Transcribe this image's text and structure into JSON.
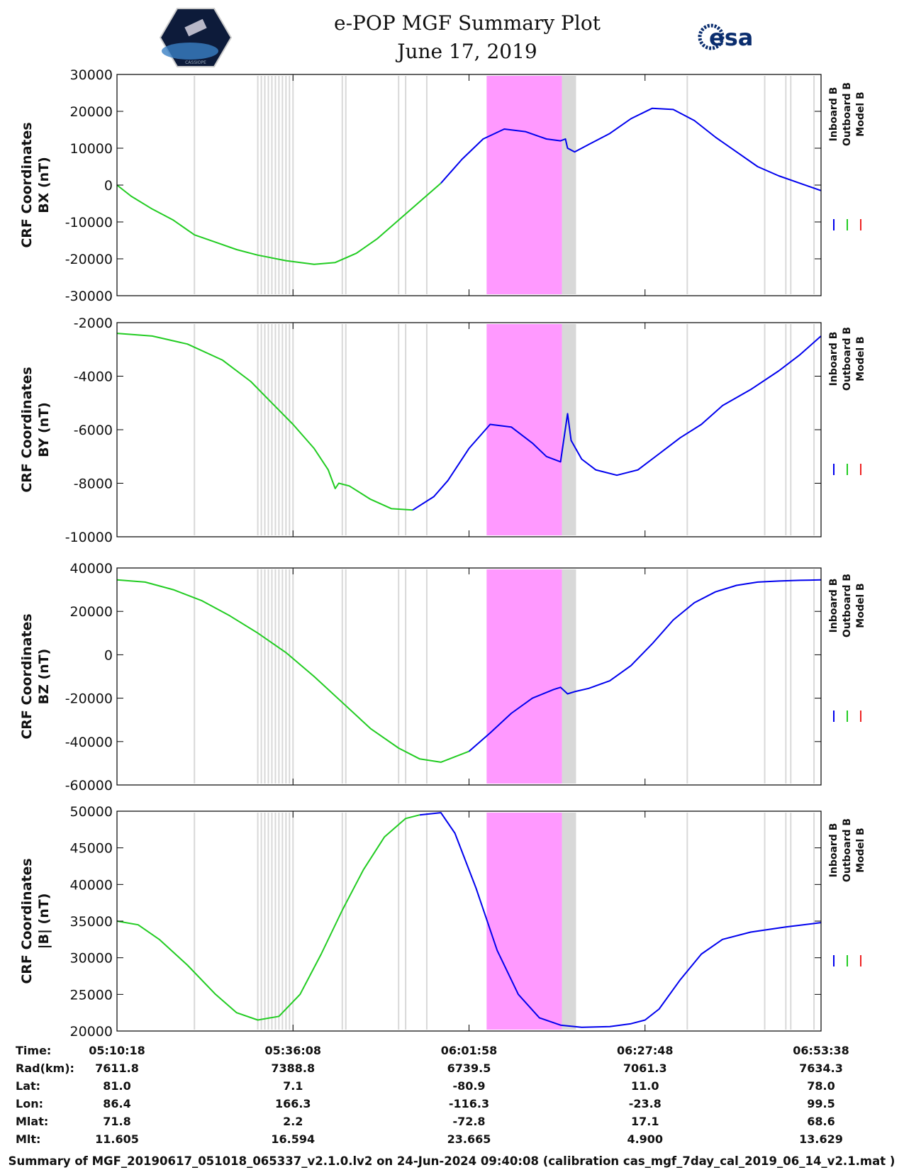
{
  "header": {
    "title": "e-POP MGF Summary Plot",
    "date": "June 17, 2019",
    "esa_logo_text": "esa",
    "cassiope_logo_text": "CASSIOPE"
  },
  "footer": {
    "summary": "Summary of MGF_20190617_051018_065337_v2.1.0.lv2 on 24-Jun-2024 09:40:08 (calibration cas_mgf_7day_cal_2019_06_14_v2.1.mat )"
  },
  "colors": {
    "inboard": "#0000ee",
    "outboard": "#22cc22",
    "model": "#ee2222",
    "gap": "#d8d8d8",
    "highlight": "#ff99ff"
  },
  "chart_data": [
    {
      "type": "line",
      "ylabel_line1": "CRF Coordinates",
      "ylabel_line2": "BX (nT)",
      "ylim": [
        -30000,
        30000
      ],
      "yticks": [
        -30000,
        -20000,
        -10000,
        0,
        10000,
        20000,
        30000
      ],
      "ytick_labels": [
        "-30000",
        "-20000",
        "-10000",
        "0",
        "10000",
        "20000",
        "30000"
      ],
      "legend": [
        "Inboard B",
        "Outboard B",
        "Model B"
      ],
      "series": [
        {
          "name": "Outboard B",
          "x": [
            0,
            0.02,
            0.05,
            0.08,
            0.11,
            0.14,
            0.17,
            0.2,
            0.24,
            0.28,
            0.31,
            0.34,
            0.37,
            0.4,
            0.43,
            0.46
          ],
          "values": [
            0,
            -3000,
            -6500,
            -9500,
            -13500,
            -15500,
            -17500,
            -19000,
            -20500,
            -21500,
            -21000,
            -18500,
            -14500,
            -9500,
            -4500,
            500
          ]
        },
        {
          "name": "Inboard B",
          "x": [
            0.46,
            0.49,
            0.52,
            0.55,
            0.58,
            0.61,
            0.63,
            0.637,
            0.64,
            0.65,
            0.67,
            0.7,
            0.73,
            0.76,
            0.79,
            0.82,
            0.85,
            0.88,
            0.91,
            0.94,
            0.97,
            1.0
          ],
          "values": [
            500,
            7000,
            12500,
            15200,
            14500,
            12500,
            12000,
            12500,
            10000,
            9000,
            11000,
            14000,
            18000,
            20800,
            20500,
            17500,
            13000,
            9000,
            5000,
            2500,
            500,
            -1500
          ]
        }
      ]
    },
    {
      "type": "line",
      "ylabel_line1": "CRF Coordinates",
      "ylabel_line2": "BY (nT)",
      "ylim": [
        -10000,
        -2000
      ],
      "yticks": [
        -10000,
        -8000,
        -6000,
        -4000,
        -2000
      ],
      "ytick_labels": [
        "-10000",
        "-8000",
        "-6000",
        "-4000",
        "-2000"
      ],
      "legend": [
        "Inboard B",
        "Outboard B",
        "Model B"
      ],
      "series": [
        {
          "name": "Outboard B",
          "x": [
            0,
            0.05,
            0.1,
            0.15,
            0.19,
            0.22,
            0.25,
            0.28,
            0.3,
            0.31,
            0.315,
            0.33,
            0.36,
            0.39,
            0.42
          ],
          "values": [
            -2400,
            -2500,
            -2800,
            -3400,
            -4200,
            -5000,
            -5800,
            -6700,
            -7500,
            -8200,
            -8000,
            -8100,
            -8600,
            -8950,
            -9000
          ]
        },
        {
          "name": "Inboard B",
          "x": [
            0.42,
            0.45,
            0.47,
            0.5,
            0.53,
            0.56,
            0.59,
            0.61,
            0.63,
            0.64,
            0.645,
            0.66,
            0.68,
            0.71,
            0.74,
            0.77,
            0.8,
            0.83,
            0.86,
            0.9,
            0.94,
            0.97,
            1.0
          ],
          "values": [
            -9000,
            -8500,
            -7900,
            -6700,
            -5800,
            -5900,
            -6500,
            -7000,
            -7200,
            -5400,
            -6400,
            -7100,
            -7500,
            -7700,
            -7500,
            -6900,
            -6300,
            -5800,
            -5100,
            -4500,
            -3800,
            -3200,
            -2500
          ]
        }
      ]
    },
    {
      "type": "line",
      "ylabel_line1": "CRF Coordinates",
      "ylabel_line2": "BZ (nT)",
      "ylim": [
        -60000,
        40000
      ],
      "yticks": [
        -60000,
        -40000,
        -20000,
        0,
        20000,
        40000
      ],
      "ytick_labels": [
        "-60000",
        "-40000",
        "-20000",
        "0",
        "20000",
        "40000"
      ],
      "legend": [
        "Inboard B",
        "Outboard B",
        "Model B"
      ],
      "series": [
        {
          "name": "Outboard B",
          "x": [
            0,
            0.04,
            0.08,
            0.12,
            0.16,
            0.2,
            0.24,
            0.28,
            0.32,
            0.36,
            0.4,
            0.43,
            0.46,
            0.5
          ],
          "values": [
            34500,
            33500,
            30000,
            25000,
            18000,
            10000,
            1000,
            -10000,
            -22000,
            -34000,
            -43000,
            -48000,
            -49500,
            -44500
          ]
        },
        {
          "name": "Inboard B",
          "x": [
            0.5,
            0.53,
            0.56,
            0.59,
            0.62,
            0.63,
            0.64,
            0.65,
            0.67,
            0.7,
            0.73,
            0.76,
            0.79,
            0.82,
            0.85,
            0.88,
            0.91,
            0.94,
            0.97,
            1.0
          ],
          "values": [
            -44500,
            -36000,
            -27000,
            -20000,
            -16000,
            -15000,
            -18000,
            -17000,
            -15500,
            -12000,
            -5000,
            5000,
            16000,
            24000,
            29000,
            32000,
            33500,
            34000,
            34300,
            34500
          ]
        }
      ]
    },
    {
      "type": "line",
      "ylabel_line1": "CRF Coordinates",
      "ylabel_line2": "|B| (nT)",
      "ylim": [
        20000,
        50000
      ],
      "yticks": [
        20000,
        25000,
        30000,
        35000,
        40000,
        45000,
        50000
      ],
      "ytick_labels": [
        "20000",
        "25000",
        "30000",
        "35000",
        "40000",
        "45000",
        "50000"
      ],
      "legend": [
        "Inboard B",
        "Outboard B",
        "Model B"
      ],
      "series": [
        {
          "name": "Outboard B",
          "x": [
            0,
            0.03,
            0.06,
            0.1,
            0.14,
            0.17,
            0.2,
            0.23,
            0.26,
            0.29,
            0.32,
            0.35,
            0.38,
            0.41,
            0.43
          ],
          "values": [
            35000,
            34500,
            32500,
            29000,
            25000,
            22500,
            21500,
            22000,
            25000,
            30500,
            36500,
            42000,
            46500,
            49000,
            49500
          ]
        },
        {
          "name": "Inboard B",
          "x": [
            0.43,
            0.46,
            0.48,
            0.51,
            0.54,
            0.57,
            0.6,
            0.63,
            0.66,
            0.7,
            0.73,
            0.75,
            0.77,
            0.8,
            0.83,
            0.86,
            0.9,
            0.95,
            1.0
          ],
          "values": [
            49500,
            49800,
            47000,
            39500,
            31000,
            25000,
            21800,
            20800,
            20500,
            20600,
            21000,
            21500,
            23000,
            27000,
            30500,
            32500,
            33500,
            34200,
            34800
          ]
        }
      ]
    }
  ],
  "shading": {
    "gap_lines": [
      0.11,
      0.2,
      0.205,
      0.21,
      0.215,
      0.22,
      0.225,
      0.23,
      0.235,
      0.24,
      0.245,
      0.25,
      0.32,
      0.325,
      0.4,
      0.41,
      0.44,
      0.81,
      0.92,
      0.95,
      0.957,
      0.99
    ],
    "highlight_range": [
      0.525,
      0.632
    ],
    "gray_range": [
      0.632,
      0.652
    ]
  },
  "ephemeris": {
    "labels": [
      "Time:",
      "Rad(km):",
      "Lat:",
      "Lon:",
      "Mlat:",
      "Mlt:"
    ],
    "columns": [
      {
        "Time": "05:10:18",
        "Rad": "7611.8",
        "Lat": "81.0",
        "Lon": "86.4",
        "Mlat": "71.8",
        "Mlt": "11.605"
      },
      {
        "Time": "05:36:08",
        "Rad": "7388.8",
        "Lat": "7.1",
        "Lon": "166.3",
        "Mlat": "2.2",
        "Mlt": "16.594"
      },
      {
        "Time": "06:01:58",
        "Rad": "6739.5",
        "Lat": "-80.9",
        "Lon": "-116.3",
        "Mlat": "-72.8",
        "Mlt": "23.665"
      },
      {
        "Time": "06:27:48",
        "Rad": "7061.3",
        "Lat": "11.0",
        "Lon": "-23.8",
        "Mlat": "17.1",
        "Mlt": "4.900"
      },
      {
        "Time": "06:53:38",
        "Rad": "7634.3",
        "Lat": "78.0",
        "Lon": "99.5",
        "Mlat": "68.6",
        "Mlt": "13.629"
      }
    ]
  }
}
